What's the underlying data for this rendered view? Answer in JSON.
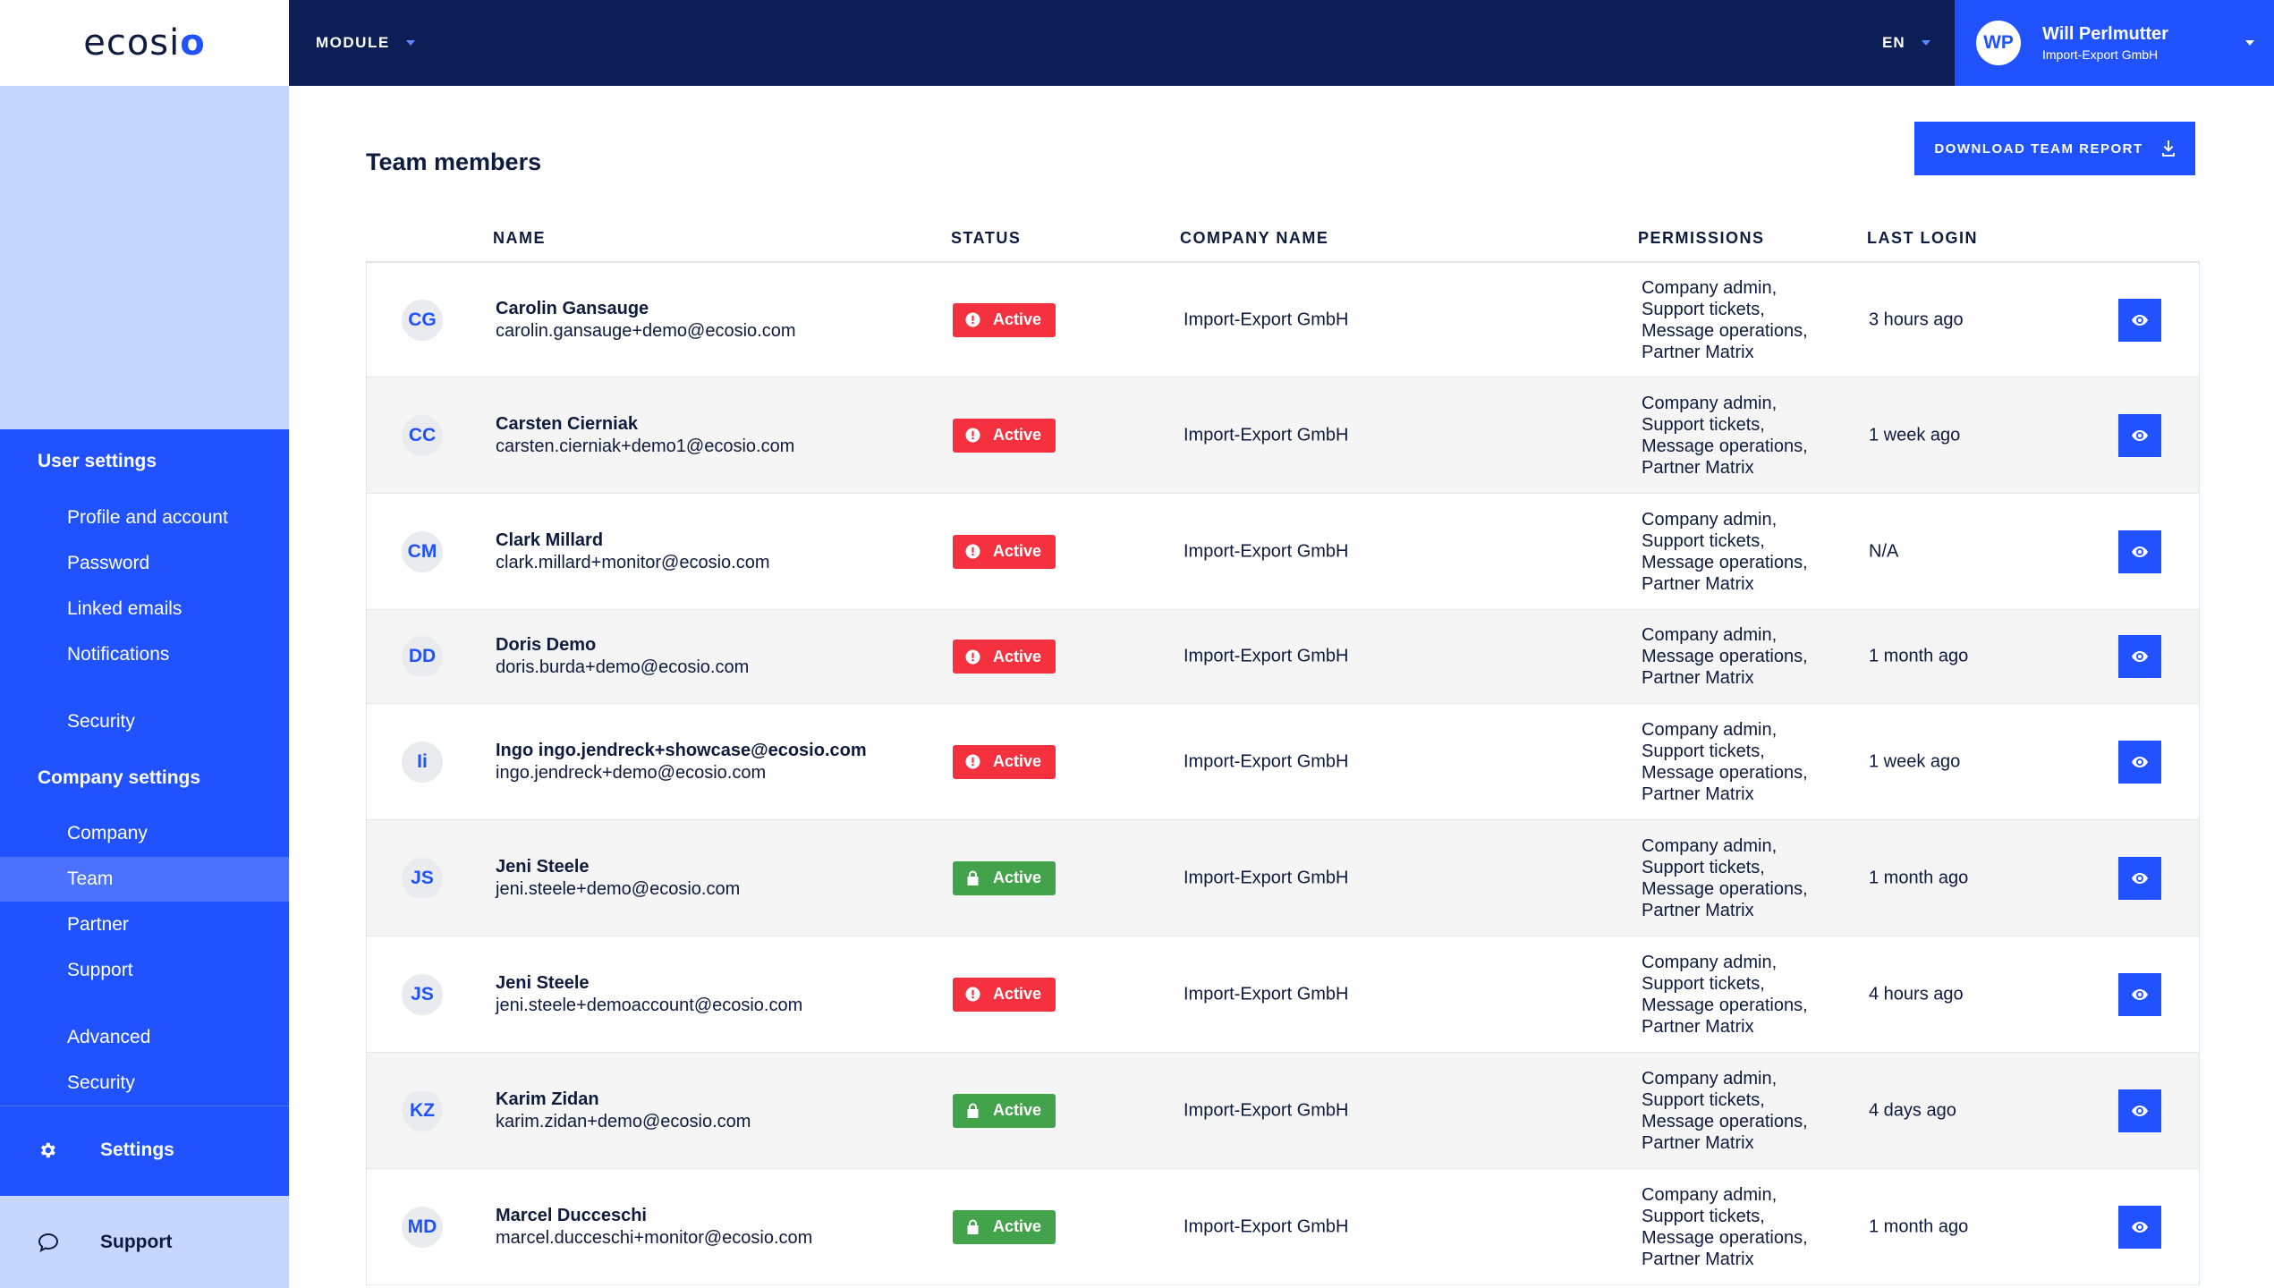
{
  "brand": {
    "logo_text": "ecosi",
    "logo_accent": "o",
    "accent_color": "#2052ff",
    "navy_color": "#0b1f56"
  },
  "topbar": {
    "module_label": "MODULE",
    "language": "EN",
    "user": {
      "initials": "WP",
      "name": "Will Perlmutter",
      "company": "Import-Export GmbH"
    }
  },
  "sidebar": {
    "user_settings_title": "User settings",
    "user_items": [
      {
        "label": "Profile and account"
      },
      {
        "label": "Password"
      },
      {
        "label": "Linked emails"
      },
      {
        "label": "Notifications"
      },
      {
        "label": "Security"
      }
    ],
    "company_settings_title": "Company settings",
    "company_items": [
      {
        "label": "Company"
      },
      {
        "label": "Team",
        "active": true
      },
      {
        "label": "Partner"
      },
      {
        "label": "Support"
      },
      {
        "label": "Advanced"
      },
      {
        "label": "Security"
      }
    ],
    "settings_label": "Settings",
    "support_label": "Support",
    "settings_icon": "gear-icon",
    "support_icon": "chat-bubble-icon"
  },
  "main": {
    "title": "Team members",
    "download_label": "DOWNLOAD TEAM REPORT",
    "download_icon": "download-icon",
    "columns": {
      "name": "NAME",
      "status": "STATUS",
      "company": "COMPANY NAME",
      "permissions": "PERMISSIONS",
      "last_login": "LAST LOGIN"
    },
    "status_colors": {
      "red": "#f5313f",
      "green": "#43a34a"
    },
    "rows": [
      {
        "initials": "CG",
        "name": "Carolin Gansauge",
        "email": "carolin.gansauge+demo@ecosio.com",
        "status": "Active",
        "status_type": "red",
        "company": "Import-Export GmbH",
        "permissions": [
          "Company admin,",
          "Support tickets,",
          "Message operations,",
          "Partner Matrix"
        ],
        "last_login": "3 hours ago"
      },
      {
        "initials": "CC",
        "name": "Carsten Cierniak",
        "email": "carsten.cierniak+demo1@ecosio.com",
        "status": "Active",
        "status_type": "red",
        "company": "Import-Export GmbH",
        "permissions": [
          "Company admin,",
          "Support tickets,",
          "Message operations,",
          "Partner Matrix"
        ],
        "last_login": "1 week ago"
      },
      {
        "initials": "CM",
        "name": "Clark Millard",
        "email": "clark.millard+monitor@ecosio.com",
        "status": "Active",
        "status_type": "red",
        "company": "Import-Export GmbH",
        "permissions": [
          "Company admin,",
          "Support tickets,",
          "Message operations,",
          "Partner Matrix"
        ],
        "last_login": "N/A"
      },
      {
        "initials": "DD",
        "name": "Doris Demo",
        "email": "doris.burda+demo@ecosio.com",
        "status": "Active",
        "status_type": "red",
        "company": "Import-Export GmbH",
        "permissions": [
          "Company admin,",
          "Message operations,",
          "Partner Matrix"
        ],
        "last_login": "1 month ago"
      },
      {
        "initials": "Ii",
        "name": "Ingo ingo.jendreck+showcase@ecosio.com",
        "email": "ingo.jendreck+demo@ecosio.com",
        "status": "Active",
        "status_type": "red",
        "company": "Import-Export GmbH",
        "permissions": [
          "Company admin,",
          "Support tickets,",
          "Message operations,",
          "Partner Matrix"
        ],
        "last_login": "1 week ago"
      },
      {
        "initials": "JS",
        "name": "Jeni Steele",
        "email": "jeni.steele+demo@ecosio.com",
        "status": "Active",
        "status_type": "green",
        "company": "Import-Export GmbH",
        "permissions": [
          "Company admin,",
          "Support tickets,",
          "Message operations,",
          "Partner Matrix"
        ],
        "last_login": "1 month ago"
      },
      {
        "initials": "JS",
        "name": "Jeni Steele",
        "email": "jeni.steele+demoaccount@ecosio.com",
        "status": "Active",
        "status_type": "red",
        "company": "Import-Export GmbH",
        "permissions": [
          "Company admin,",
          "Support tickets,",
          "Message operations,",
          "Partner Matrix"
        ],
        "last_login": "4 hours ago"
      },
      {
        "initials": "KZ",
        "name": "Karim Zidan",
        "email": "karim.zidan+demo@ecosio.com",
        "status": "Active",
        "status_type": "green",
        "company": "Import-Export GmbH",
        "permissions": [
          "Company admin,",
          "Support tickets,",
          "Message operations,",
          "Partner Matrix"
        ],
        "last_login": "4 days ago"
      },
      {
        "initials": "MD",
        "name": "Marcel Ducceschi",
        "email": "marcel.ducceschi+monitor@ecosio.com",
        "status": "Active",
        "status_type": "green",
        "company": "Import-Export GmbH",
        "permissions": [
          "Company admin,",
          "Support tickets,",
          "Message operations,",
          "Partner Matrix"
        ],
        "last_login": "1 month ago"
      }
    ]
  }
}
